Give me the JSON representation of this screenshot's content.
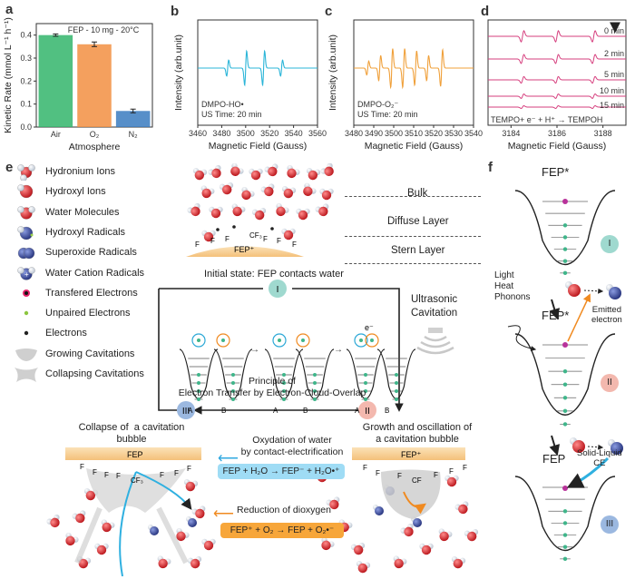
{
  "panel_labels": {
    "a": "a",
    "b": "b",
    "c": "c",
    "d": "d",
    "e": "e",
    "f": "f"
  },
  "chart_data": [
    {
      "id": "a",
      "type": "bar",
      "annotation": "FEP - 10 mg - 20°C",
      "categories": [
        "Air",
        "O₂",
        "N₂"
      ],
      "values": [
        0.4,
        0.36,
        0.07
      ],
      "errors": [
        0.005,
        0.01,
        0.008
      ],
      "colors": [
        "#33b56b",
        "#f28f42",
        "#3a7bc0"
      ],
      "xlabel": "Atmosphere",
      "ylabel": "Kinetic Rate (mmol L⁻¹ h⁻¹)",
      "ylim": [
        0,
        0.45
      ],
      "yticks": [
        "0.0",
        "0.1",
        "0.2",
        "0.3",
        "0.4"
      ]
    },
    {
      "id": "b",
      "type": "line",
      "color": "#2bb5d8",
      "annotation_1": "DMPO-HO•",
      "annotation_2": "US Time: 20 min",
      "xlabel": "Magnetic Field (Gauss)",
      "ylabel": "Intensity (arb.unit)",
      "xlim": [
        3460,
        3560
      ],
      "xticks": [
        "3460",
        "3480",
        "3500",
        "3520",
        "3540",
        "3560"
      ],
      "peaks": [
        {
          "x": 3485,
          "h": 0.35
        },
        {
          "x": 3500,
          "h": 0.75
        },
        {
          "x": 3515,
          "h": 0.75
        },
        {
          "x": 3530,
          "h": 0.35
        }
      ]
    },
    {
      "id": "c",
      "type": "line",
      "color": "#f0a03a",
      "annotation_1": "DMPO-O₂⁻",
      "annotation_2": "US Time: 20 min",
      "xlabel": "Magnetic Field (Gauss)",
      "ylabel": "Intensity (arb.unit)",
      "xlim": [
        3480,
        3540
      ],
      "xticks": [
        "3480",
        "3490",
        "3500",
        "3510",
        "3520",
        "3530",
        "3540"
      ],
      "peaks": [
        {
          "x": 3487,
          "h": 0.3
        },
        {
          "x": 3493,
          "h": 0.55
        },
        {
          "x": 3499,
          "h": 0.85
        },
        {
          "x": 3505,
          "h": 0.85
        },
        {
          "x": 3511,
          "h": 0.75
        },
        {
          "x": 3517,
          "h": 0.55
        },
        {
          "x": 3524,
          "h": 0.8
        }
      ]
    },
    {
      "id": "d",
      "type": "line",
      "color": "#d63f7e",
      "annotation": "TEMPO+ e⁻ + H⁺ → TEMPOH",
      "xlabel": "Magnetic Field (Gauss)",
      "xlim": [
        3183,
        3189
      ],
      "xticks": [
        "3184",
        "3186",
        "3188"
      ],
      "series": [
        {
          "name": "0 min",
          "amplitude": 1.0
        },
        {
          "name": "2 min",
          "amplitude": 0.8
        },
        {
          "name": "5 min",
          "amplitude": 0.6
        },
        {
          "name": "10 min",
          "amplitude": 0.4
        },
        {
          "name": "15 min",
          "amplitude": 0.25
        }
      ],
      "peaks_x": [
        3184.5,
        3186.0,
        3187.6
      ]
    }
  ],
  "legend": [
    {
      "label": "Hydronium Ions",
      "icon": "hydronium-icon"
    },
    {
      "label": "Hydroxyl Ions",
      "icon": "hydroxyl-ion-icon"
    },
    {
      "label": "Water Molecules",
      "icon": "water-molecule-icon"
    },
    {
      "label": "Hydroxyl Radicals",
      "icon": "hydroxyl-radical-icon"
    },
    {
      "label": "Superoxide Radicals",
      "icon": "superoxide-icon"
    },
    {
      "label": "Water Cation Radicals",
      "icon": "water-cation-icon"
    },
    {
      "label": "Transfered Electrons",
      "icon": "transferred-electron-icon"
    },
    {
      "label": "Unpaired Electrons",
      "icon": "unpaired-electron-icon"
    },
    {
      "label": "Electrons",
      "icon": "electron-icon"
    },
    {
      "label": "Growing Cavitations",
      "icon": "growing-cavitation-icon"
    },
    {
      "label": "Collapsing Cavitations",
      "icon": "collapsing-cavitation-icon"
    }
  ],
  "panel_e": {
    "layers": {
      "bulk": "Bulk",
      "diffuse": "Diffuse Layer",
      "stern": "Stern Layer"
    },
    "fep_plus": "FEP⁺",
    "cf3": "CF₃",
    "f": "F",
    "initial_state": "Initial state: FEP contacts water",
    "stage_I": "I",
    "stage_II": "II",
    "stage_III": "III",
    "ultrasonic": "Ultrasonic\nCavitation",
    "principle": "Principle of\nElectron Transfer by Electron-Cloud-Overlap",
    "well_a": "A",
    "well_b": "B",
    "electron": "e⁻",
    "collapse_title": "Collapse of  a cavitation\nbubble",
    "growth_title": "Growth and oscillation of\na cavitation bubble",
    "fep": "FEP",
    "oxidation_title": "Oxydation of water\nby contact-electrification",
    "oxidation_eq": "FEP + H₂O → FEP⁻ + H₂O•⁺",
    "reduction_title": "Reduction of dioxygen",
    "reduction_eq": "FEP⁺ + O₂ → FEP + O₂•⁻"
  },
  "panel_f": {
    "fep_star_top": "FEP*",
    "fep_star_mid": "FEP*",
    "fep_bottom": "FEP",
    "light": "Light\nHeat\nPhonons",
    "emitted": "Emitted\nelectron",
    "solid_liquid": "Solid-Liquid\nCE",
    "stage_I": "I",
    "stage_II": "II",
    "stage_III": "III"
  },
  "colors": {
    "oxygen": "#d8262c",
    "hydrogen": "#e8ecf2",
    "blue_radical": "#3b4fa8",
    "teal": "#9fd9cf",
    "pink": "#f3b8ae",
    "blue_badge": "#9bb8e0",
    "fep_layer": "#f6c98c",
    "cyan_box": "#9fdcf5",
    "orange_box": "#f7a63a"
  }
}
